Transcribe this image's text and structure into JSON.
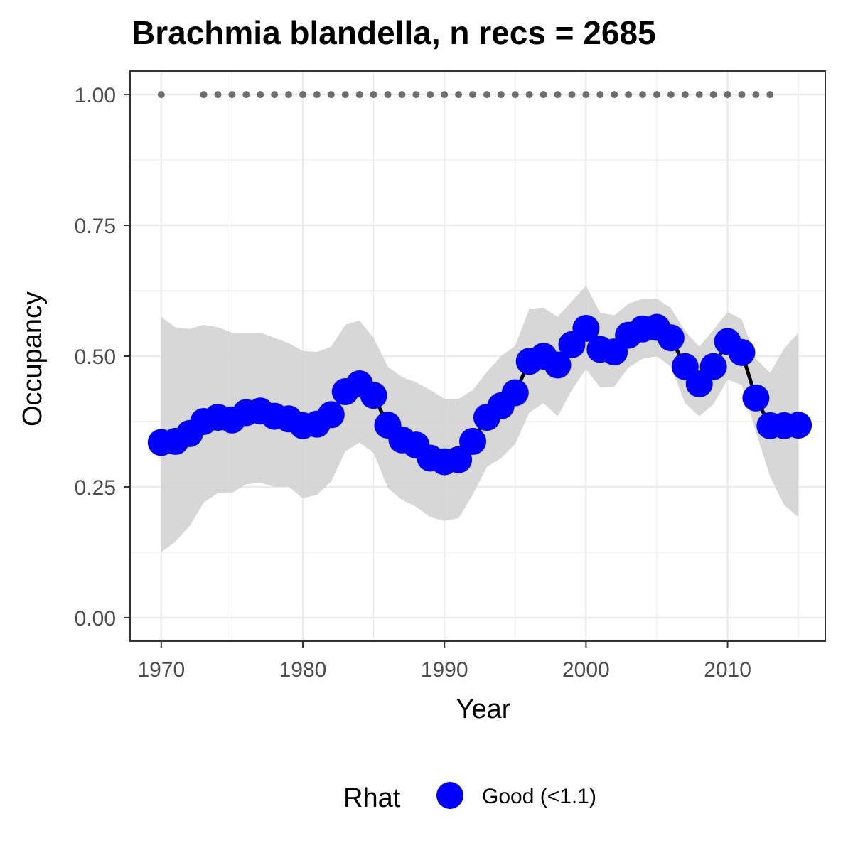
{
  "chart_data": {
    "type": "line",
    "title": "Brachmia blandella, n recs = 2685",
    "xlabel": "Year",
    "ylabel": "Occupancy",
    "xlim": [
      1967.8,
      2016.9
    ],
    "ylim": [
      -0.045,
      1.045
    ],
    "x_ticks": [
      1970,
      1980,
      1990,
      2000,
      2010
    ],
    "x_tick_labels": [
      "1970",
      "1980",
      "1990",
      "2000",
      "2010"
    ],
    "y_ticks": [
      0,
      0.25,
      0.5,
      0.75,
      1.0
    ],
    "y_tick_labels": [
      "0.00",
      "0.25",
      "0.50",
      "0.75",
      "1.00"
    ],
    "grid": true,
    "legend": {
      "title": "Rhat",
      "position": "bottom",
      "entries": [
        {
          "label": "Good (<1.1)",
          "color": "#0000ff"
        }
      ]
    },
    "colors": {
      "points": "#0000ff",
      "line": "#000000",
      "ribbon": "#d3d3d3",
      "record_markers": "#6e6e6e",
      "grid": "#ebebeb",
      "panel_border": "#333333"
    },
    "series": [
      {
        "x": [
          1970,
          1971,
          1972,
          1973,
          1974,
          1975,
          1976,
          1977,
          1978,
          1979,
          1980,
          1981,
          1982,
          1983,
          1984,
          1985,
          1986,
          1987,
          1988,
          1989,
          1990,
          1991,
          1992,
          1993,
          1994,
          1995,
          1996,
          1997,
          1998,
          1999,
          2000,
          2001,
          2002,
          2003,
          2004,
          2005,
          2006,
          2007,
          2008,
          2009,
          2010,
          2011,
          2012,
          2013,
          2014,
          2015
        ],
        "y": [
          0.335,
          0.337,
          0.352,
          0.375,
          0.383,
          0.378,
          0.392,
          0.395,
          0.385,
          0.38,
          0.367,
          0.37,
          0.388,
          0.432,
          0.447,
          0.425,
          0.368,
          0.34,
          0.33,
          0.305,
          0.298,
          0.302,
          0.337,
          0.383,
          0.405,
          0.43,
          0.49,
          0.5,
          0.483,
          0.522,
          0.553,
          0.513,
          0.508,
          0.54,
          0.552,
          0.555,
          0.535,
          0.48,
          0.447,
          0.48,
          0.528,
          0.507,
          0.42,
          0.367,
          0.367,
          0.368
        ],
        "lower": [
          0.125,
          0.145,
          0.175,
          0.22,
          0.238,
          0.238,
          0.255,
          0.258,
          0.25,
          0.25,
          0.228,
          0.235,
          0.26,
          0.318,
          0.335,
          0.315,
          0.248,
          0.225,
          0.212,
          0.192,
          0.185,
          0.19,
          0.235,
          0.288,
          0.305,
          0.332,
          0.392,
          0.41,
          0.385,
          0.435,
          0.475,
          0.44,
          0.442,
          0.478,
          0.495,
          0.5,
          0.48,
          0.41,
          0.385,
          0.408,
          0.455,
          0.445,
          0.355,
          0.27,
          0.215,
          0.192
        ],
        "upper": [
          0.575,
          0.555,
          0.552,
          0.56,
          0.555,
          0.545,
          0.545,
          0.545,
          0.535,
          0.525,
          0.51,
          0.508,
          0.518,
          0.56,
          0.568,
          0.535,
          0.48,
          0.46,
          0.45,
          0.435,
          0.418,
          0.418,
          0.435,
          0.47,
          0.5,
          0.52,
          0.59,
          0.593,
          0.575,
          0.605,
          0.635,
          0.583,
          0.578,
          0.6,
          0.61,
          0.61,
          0.592,
          0.548,
          0.518,
          0.55,
          0.585,
          0.57,
          0.495,
          0.468,
          0.515,
          0.545
        ]
      }
    ],
    "record_years": [
      1970,
      1973,
      1974,
      1975,
      1976,
      1977,
      1978,
      1979,
      1980,
      1981,
      1982,
      1983,
      1984,
      1985,
      1986,
      1987,
      1988,
      1989,
      1990,
      1991,
      1992,
      1993,
      1994,
      1995,
      1996,
      1997,
      1998,
      1999,
      2000,
      2001,
      2002,
      2003,
      2004,
      2005,
      2006,
      2007,
      2008,
      2009,
      2010,
      2011,
      2012,
      2013
    ],
    "record_y": 1.0
  }
}
